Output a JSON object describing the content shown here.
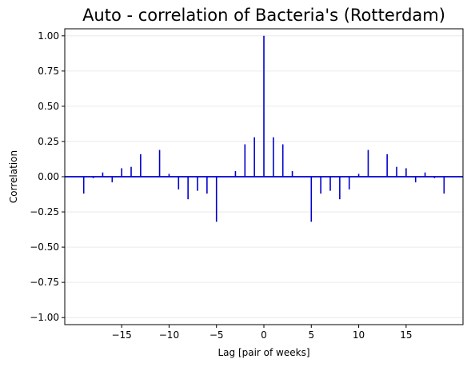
{
  "chart_data": {
    "type": "bar",
    "style": "stem",
    "title": "Auto - correlation of Bacteria's (Rotterdam)",
    "xlabel": "Lag [pair of weeks]",
    "ylabel": "Correlation",
    "xlim": [
      -21,
      21
    ],
    "ylim": [
      -1.05,
      1.05
    ],
    "x_ticks": [
      -15,
      -10,
      -5,
      0,
      5,
      10,
      15
    ],
    "x_tick_labels": [
      "−15",
      "−10",
      "−5",
      "0",
      "5",
      "10",
      "15"
    ],
    "y_ticks": [
      -1.0,
      -0.75,
      -0.5,
      -0.25,
      0.0,
      0.25,
      0.5,
      0.75,
      1.0
    ],
    "y_tick_labels": [
      "−1.00",
      "−0.75",
      "−0.50",
      "−0.25",
      "0.00",
      "0.25",
      "0.50",
      "0.75",
      "1.00"
    ],
    "grid": "horizontal",
    "baseline": 0,
    "color": "#0000cc",
    "grid_color": "#e5e5e5",
    "x": [
      -19,
      -18,
      -17,
      -16,
      -15,
      -14,
      -13,
      -12,
      -11,
      -10,
      -9,
      -8,
      -7,
      -6,
      -5,
      -4,
      -3,
      -2,
      -1,
      0,
      1,
      2,
      3,
      4,
      5,
      6,
      7,
      8,
      9,
      10,
      11,
      12,
      13,
      14,
      15,
      16,
      17,
      18,
      19
    ],
    "values": [
      -0.12,
      -0.01,
      0.03,
      -0.04,
      0.06,
      0.07,
      0.16,
      0.0,
      0.19,
      0.02,
      -0.09,
      -0.16,
      -0.1,
      -0.12,
      -0.32,
      0.0,
      0.04,
      0.23,
      0.28,
      1.0,
      0.28,
      0.23,
      0.04,
      0.0,
      -0.32,
      -0.12,
      -0.1,
      -0.16,
      -0.09,
      0.02,
      0.19,
      0.0,
      0.16,
      0.07,
      0.06,
      -0.04,
      0.03,
      -0.01,
      -0.12
    ]
  }
}
